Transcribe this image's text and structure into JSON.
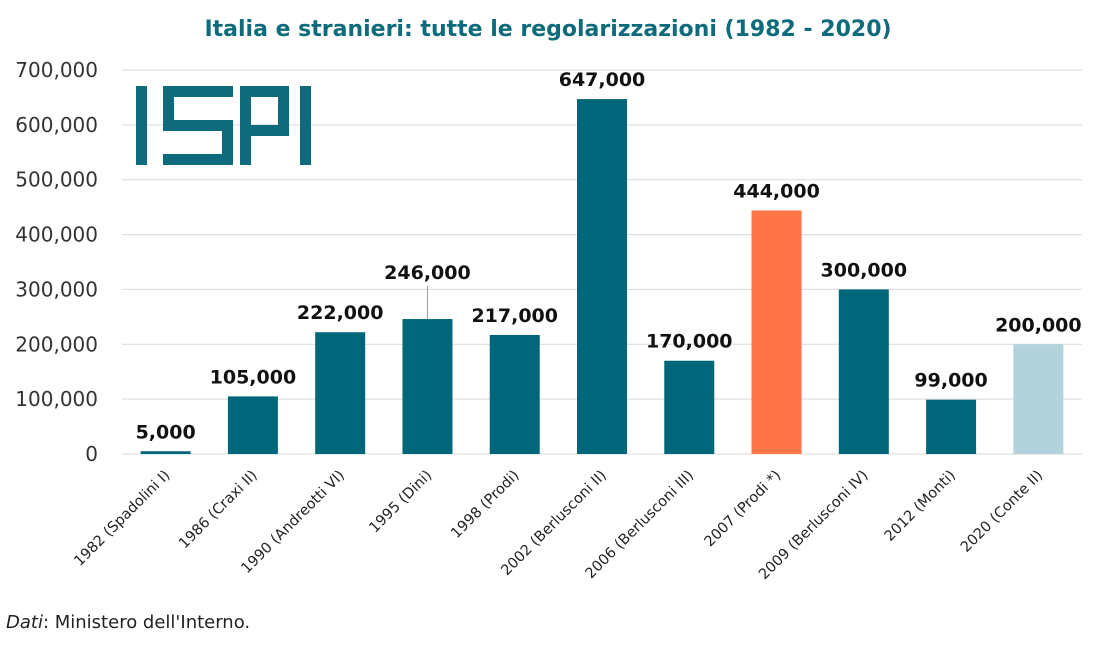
{
  "chart_data": {
    "type": "bar",
    "title": "Italia e stranieri: tutte le regolarizzazioni (1982 - 2020)",
    "categories": [
      "1982 (Spadolini I)",
      "1986 (Craxi II)",
      "1990 (Andreotti VI)",
      "1995 (Dini)",
      "1998 (Prodi)",
      "2002 (Berlusconi II)",
      "2006 (Berlusconi III)",
      "2007 (Prodi *)",
      "2009 (Berlusconi IV)",
      "2012 (Monti)",
      "2020 (Conte II)"
    ],
    "values": [
      5000,
      105000,
      222000,
      246000,
      217000,
      647000,
      170000,
      444000,
      300000,
      99000,
      200000
    ],
    "data_labels": [
      "5,000",
      "105,000",
      "222,000",
      "246,000",
      "217,000",
      "647,000",
      "170,000",
      "444,000",
      "300,000",
      "99,000",
      "200,000"
    ],
    "bar_colors": [
      "#00667a",
      "#00667a",
      "#00667a",
      "#00667a",
      "#00667a",
      "#00667a",
      "#00667a",
      "#ff7548",
      "#00667a",
      "#00667a",
      "#b3d3dc"
    ],
    "ylim": [
      0,
      700000
    ],
    "yticks": [
      0,
      100000,
      200000,
      300000,
      400000,
      500000,
      600000,
      700000
    ],
    "ytick_labels": [
      "0",
      "100,000",
      "200,000",
      "300,000",
      "400,000",
      "500,000",
      "600,000",
      "700,000"
    ],
    "xlabel": "",
    "ylabel": "",
    "grid": true,
    "legend": "none"
  },
  "logo": {
    "text": "ISPI",
    "color": "#0e6b7b"
  },
  "source": {
    "label": "Dati",
    "text": ": Ministero dell'Interno."
  },
  "colors": {
    "title": "#0e6b7b",
    "primary_bar": "#00667a",
    "highlight_bar": "#ff7548",
    "light_bar": "#b3d3dc"
  }
}
